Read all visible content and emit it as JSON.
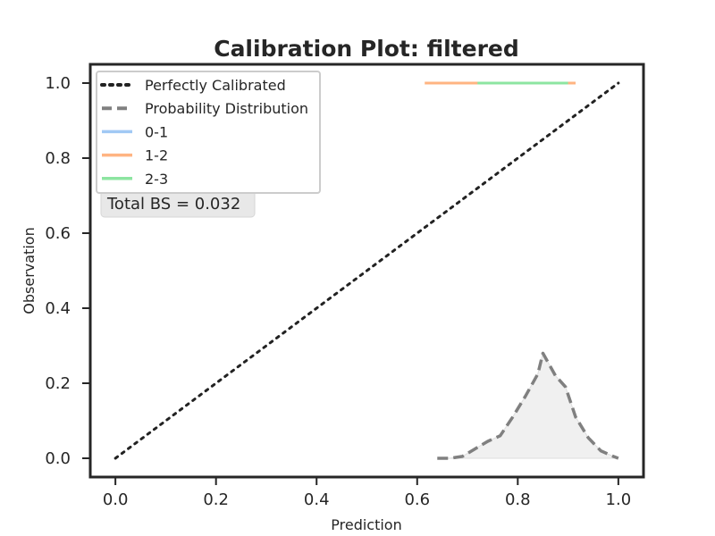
{
  "chart_data": {
    "type": "line",
    "title": "Calibration Plot: filtered",
    "xlabel": "Prediction",
    "ylabel": "Observation",
    "xlim": [
      -0.05,
      1.05
    ],
    "ylim": [
      -0.05,
      1.05
    ],
    "xticks": [
      0.0,
      0.2,
      0.4,
      0.6,
      0.8,
      1.0
    ],
    "yticks": [
      0.0,
      0.2,
      0.4,
      0.6,
      0.8,
      1.0
    ],
    "xtick_labels": [
      "0.0",
      "0.2",
      "0.4",
      "0.6",
      "0.8",
      "1.0"
    ],
    "ytick_labels": [
      "0.0",
      "0.2",
      "0.4",
      "0.6",
      "0.8",
      "1.0"
    ],
    "grid": false,
    "legend_position": "upper-left",
    "annotation": "Total BS = 0.032",
    "series": [
      {
        "name": "Perfectly Calibrated",
        "style": "dotted",
        "color": "#222222",
        "x": [
          0.0,
          1.0
        ],
        "y": [
          0.0,
          1.0
        ]
      },
      {
        "name": "Probability Distribution",
        "style": "dashed",
        "color": "#808080",
        "fill": "#f0f0f0",
        "x": [
          0.64,
          0.665,
          0.69,
          0.715,
          0.74,
          0.765,
          0.79,
          0.815,
          0.84,
          0.85,
          0.875,
          0.895,
          0.915,
          0.94,
          0.965,
          0.99,
          1.0
        ],
        "y": [
          0.0,
          0.0,
          0.005,
          0.025,
          0.045,
          0.06,
          0.11,
          0.165,
          0.225,
          0.28,
          0.22,
          0.19,
          0.11,
          0.055,
          0.02,
          0.005,
          0.0
        ]
      },
      {
        "name": "0-1",
        "style": "solid",
        "color": "#a1c9f4",
        "x": [],
        "y": []
      },
      {
        "name": "1-2",
        "style": "solid",
        "color": "#ffb482",
        "x": [
          0.615,
          0.72,
          0.86,
          0.915
        ],
        "y": [
          1.0,
          1.0,
          1.0,
          1.0
        ]
      },
      {
        "name": "2-3",
        "style": "solid",
        "color": "#8de5a1",
        "x": [
          0.72,
          0.78,
          0.86,
          0.9
        ],
        "y": [
          1.0,
          1.0,
          1.0,
          1.0
        ]
      }
    ]
  }
}
